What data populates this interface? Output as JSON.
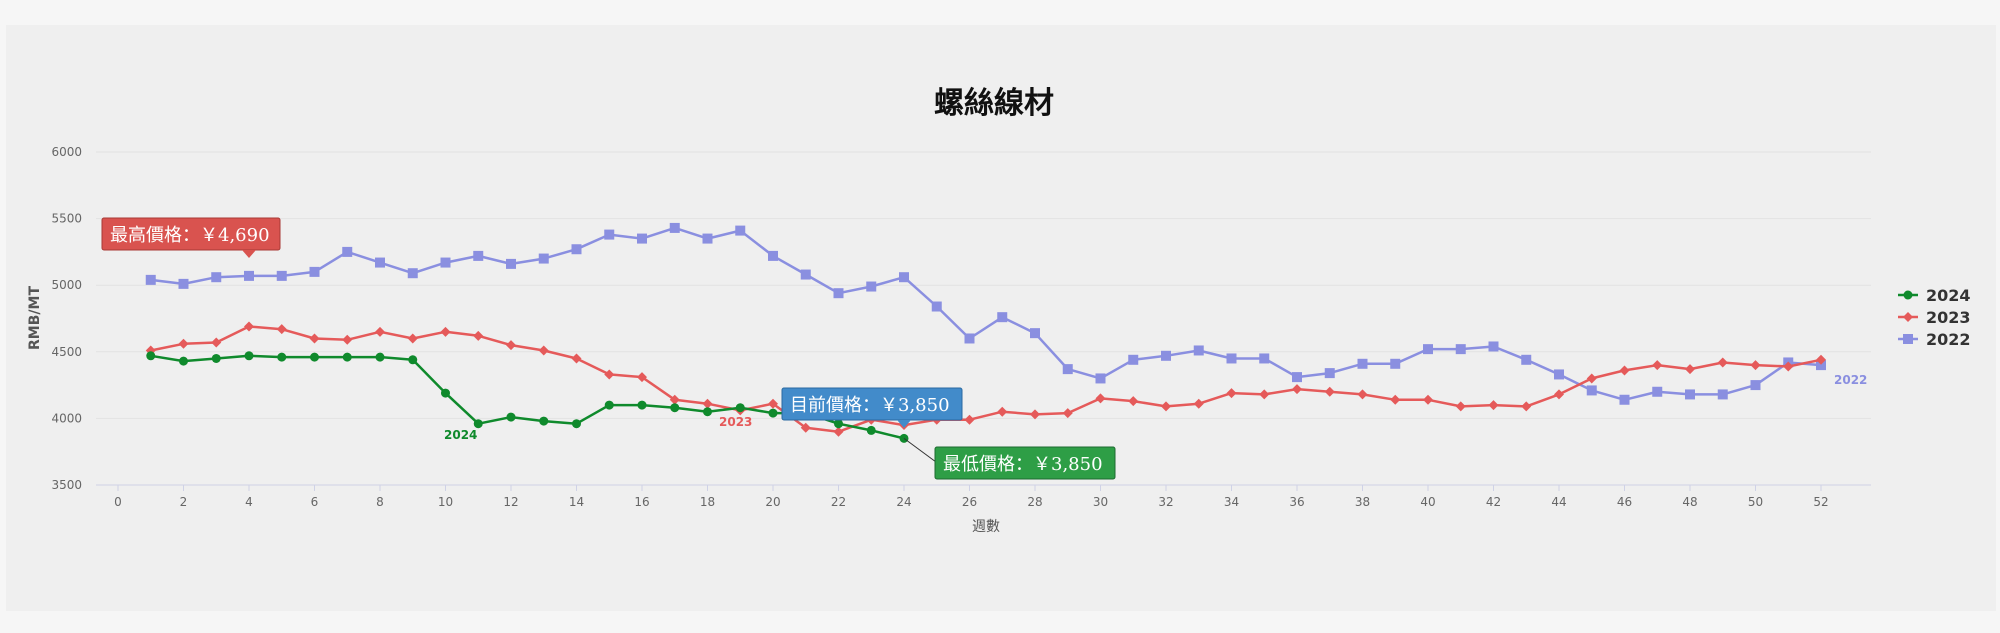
{
  "chart_data": {
    "type": "line",
    "title": "螺絲線材",
    "xlabel": "週數",
    "ylabel": "RMB/MT",
    "xlim": [
      0,
      53
    ],
    "ylim": [
      3500,
      6000
    ],
    "x_ticks": [
      0,
      2,
      4,
      6,
      8,
      10,
      12,
      14,
      16,
      18,
      20,
      22,
      24,
      26,
      28,
      30,
      32,
      34,
      36,
      38,
      40,
      42,
      44,
      46,
      48,
      50,
      52
    ],
    "y_ticks": [
      3500,
      4000,
      4500,
      5000,
      5500,
      6000
    ],
    "grid": "horizontal",
    "legend_position": "right",
    "series": [
      {
        "name": "2024",
        "color": "#0f8a2c",
        "marker": "circle",
        "x": [
          1,
          2,
          3,
          4,
          5,
          6,
          7,
          8,
          9,
          10,
          11,
          12,
          13,
          14,
          15,
          16,
          17,
          18,
          19,
          20,
          21,
          22,
          23,
          24
        ],
        "values": [
          4470,
          4430,
          4450,
          4470,
          4460,
          4460,
          4460,
          4460,
          4440,
          4190,
          3960,
          4010,
          3980,
          3960,
          4100,
          4100,
          4080,
          4050,
          4080,
          4040,
          4040,
          3960,
          3910,
          3850
        ],
        "end_label": "2024"
      },
      {
        "name": "2023",
        "color": "#e55a5a",
        "marker": "diamond",
        "x": [
          1,
          2,
          3,
          4,
          5,
          6,
          7,
          8,
          9,
          10,
          11,
          12,
          13,
          14,
          15,
          16,
          17,
          18,
          19,
          20,
          21,
          22,
          23,
          24,
          25,
          26,
          27,
          28,
          29,
          30,
          31,
          32,
          33,
          34,
          35,
          36,
          37,
          38,
          39,
          40,
          41,
          42,
          43,
          44,
          45,
          46,
          47,
          48,
          49,
          50,
          51,
          52
        ],
        "values": [
          4510,
          4560,
          4570,
          4690,
          4670,
          4600,
          4590,
          4650,
          4600,
          4650,
          4620,
          4550,
          4510,
          4450,
          4330,
          4310,
          4140,
          4110,
          4060,
          4110,
          3930,
          3900,
          3990,
          3950,
          3990,
          3990,
          4050,
          4030,
          4040,
          4150,
          4130,
          4090,
          4110,
          4190,
          4180,
          4220,
          4200,
          4180,
          4140,
          4140,
          4090,
          4100,
          4090,
          4180,
          4300,
          4360,
          4400,
          4370,
          4420,
          4400,
          4390,
          4440
        ],
        "end_label": "2023"
      },
      {
        "name": "2022",
        "color": "#8a8fe0",
        "marker": "square",
        "x": [
          1,
          2,
          3,
          4,
          5,
          6,
          7,
          8,
          9,
          10,
          11,
          12,
          13,
          14,
          15,
          16,
          17,
          18,
          19,
          20,
          21,
          22,
          23,
          24,
          25,
          26,
          27,
          28,
          29,
          30,
          31,
          32,
          33,
          34,
          35,
          36,
          37,
          38,
          39,
          40,
          41,
          42,
          43,
          44,
          45,
          46,
          47,
          48,
          49,
          50,
          51,
          52
        ],
        "values": [
          5040,
          5010,
          5060,
          5070,
          5070,
          5100,
          5250,
          5170,
          5090,
          5170,
          5220,
          5160,
          5200,
          5270,
          5380,
          5350,
          5430,
          5350,
          5410,
          5220,
          5080,
          4940,
          4990,
          5060,
          4840,
          4600,
          4760,
          4640,
          4370,
          4300,
          4440,
          4470,
          4510,
          4450,
          4450,
          4310,
          4340,
          4410,
          4410,
          4520,
          4520,
          4540,
          4440,
          4330,
          4210,
          4140,
          4200,
          4180,
          4180,
          4250,
          4420,
          4400
        ],
        "end_label": "2022"
      }
    ],
    "annotations": [
      {
        "text": "最高價格：￥4,690",
        "x": 4,
        "y": 4690,
        "color": "#d9534f"
      },
      {
        "text": "目前價格：￥3,850",
        "x": 24,
        "y": 3850,
        "color": "#428bca"
      },
      {
        "text": "最低價格：￥3,850",
        "x": 24,
        "y": 3850,
        "color": "#2e9e46"
      }
    ]
  }
}
